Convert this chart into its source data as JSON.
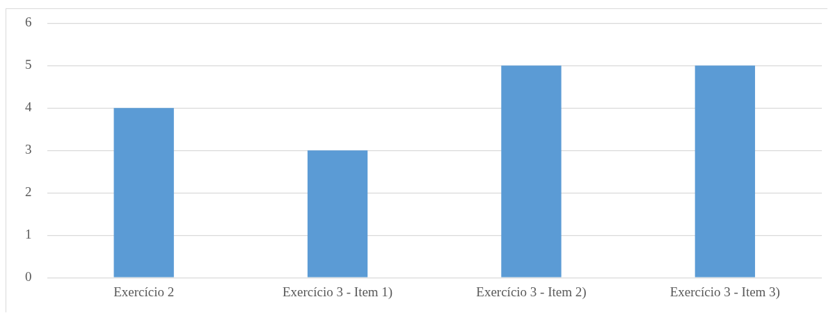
{
  "chart_data": {
    "type": "bar",
    "categories": [
      "Exercício 2",
      "Exercício 3 - Item 1)",
      "Exercício 3 - Item 2)",
      "Exercício 3 - Item 3)"
    ],
    "values": [
      4,
      3,
      5,
      5
    ],
    "color": "#5b9bd5",
    "ylim": [
      0,
      6
    ],
    "yticks": [
      0,
      1,
      2,
      3,
      4,
      5,
      6
    ],
    "grid": "y",
    "legend": false
  }
}
